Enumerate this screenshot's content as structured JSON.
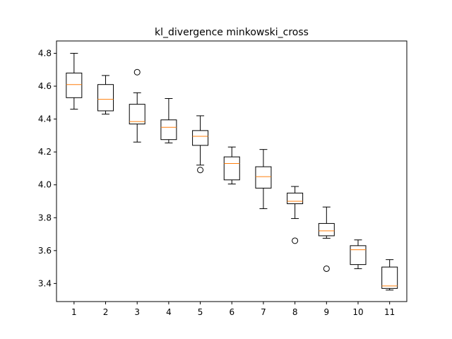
{
  "chart_data": {
    "type": "box",
    "title": "kl_divergence minkowski_cross",
    "xlabel": "",
    "ylabel": "",
    "ylim": [
      3.29,
      4.875
    ],
    "yticks": [
      "3.4",
      "3.6",
      "3.8",
      "4.0",
      "4.2",
      "4.4",
      "4.6",
      "4.8"
    ],
    "ytick_values": [
      3.4,
      3.6,
      3.8,
      4.0,
      4.2,
      4.4,
      4.6,
      4.8
    ],
    "categories": [
      "1",
      "2",
      "3",
      "4",
      "5",
      "6",
      "7",
      "8",
      "9",
      "10",
      "11"
    ],
    "boxes": [
      {
        "whislo": 4.46,
        "q1": 4.53,
        "med": 4.61,
        "q3": 4.68,
        "whishi": 4.8,
        "fliers": []
      },
      {
        "whislo": 4.43,
        "q1": 4.45,
        "med": 4.52,
        "q3": 4.61,
        "whishi": 4.665,
        "fliers": []
      },
      {
        "whislo": 4.26,
        "q1": 4.37,
        "med": 4.385,
        "q3": 4.49,
        "whishi": 4.56,
        "fliers": [
          4.685
        ]
      },
      {
        "whislo": 4.255,
        "q1": 4.275,
        "med": 4.35,
        "q3": 4.395,
        "whishi": 4.525,
        "fliers": []
      },
      {
        "whislo": 4.12,
        "q1": 4.24,
        "med": 4.295,
        "q3": 4.33,
        "whishi": 4.42,
        "fliers": [
          4.09
        ]
      },
      {
        "whislo": 4.005,
        "q1": 4.03,
        "med": 4.13,
        "q3": 4.17,
        "whishi": 4.23,
        "fliers": []
      },
      {
        "whislo": 3.855,
        "q1": 3.98,
        "med": 4.05,
        "q3": 4.11,
        "whishi": 4.215,
        "fliers": []
      },
      {
        "whislo": 3.795,
        "q1": 3.885,
        "med": 3.9,
        "q3": 3.95,
        "whishi": 3.99,
        "fliers": [
          3.66
        ]
      },
      {
        "whislo": 3.675,
        "q1": 3.69,
        "med": 3.72,
        "q3": 3.765,
        "whishi": 3.865,
        "fliers": [
          3.49
        ]
      },
      {
        "whislo": 3.49,
        "q1": 3.515,
        "med": 3.605,
        "q3": 3.63,
        "whishi": 3.665,
        "fliers": []
      },
      {
        "whislo": 3.36,
        "q1": 3.37,
        "med": 3.385,
        "q3": 3.5,
        "whishi": 3.545,
        "fliers": []
      }
    ],
    "grid": false,
    "legend": "none",
    "colors": {
      "box": "#000000",
      "median": "#ff7f0e",
      "flier": "#000000"
    }
  }
}
